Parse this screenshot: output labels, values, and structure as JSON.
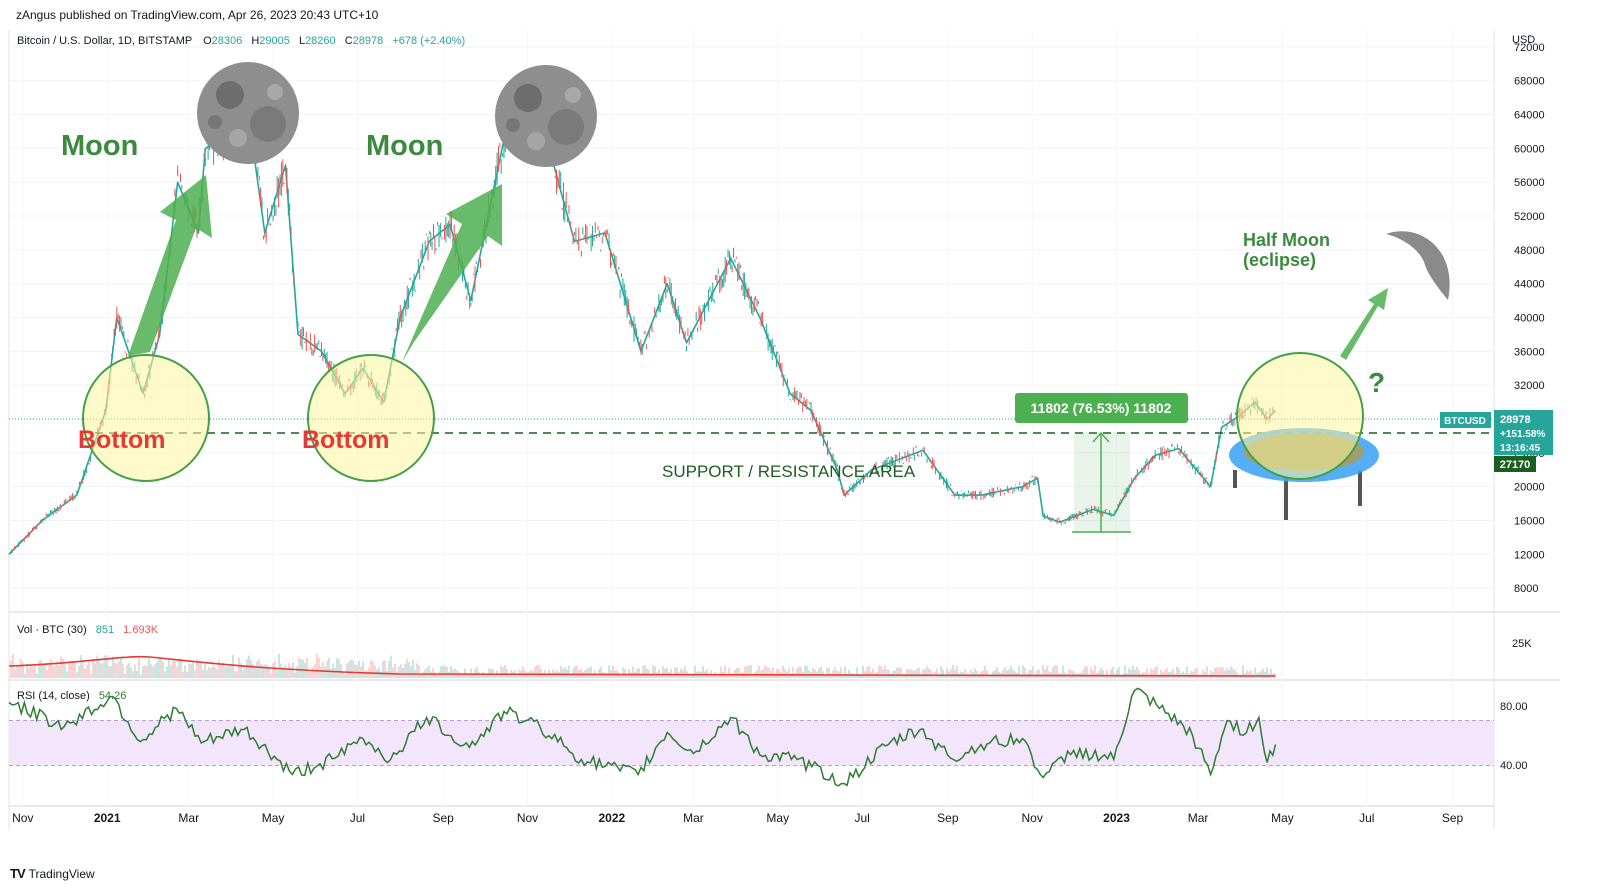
{
  "header": {
    "published_by": "zAngus published on TradingView.com, Apr 26, 2023 20:43 UTC+10"
  },
  "footer": {
    "brand": "TradingView",
    "logo_text": "TV"
  },
  "legend": {
    "symbol": "Bitcoin / U.S. Dollar, 1D, BITSTAMP",
    "open_label": "O",
    "open": "28306",
    "high_label": "H",
    "high": "29005",
    "low_label": "L",
    "low": "28260",
    "close_label": "C",
    "close": "28978",
    "change": "+678 (+2.40%)"
  },
  "price_axis": {
    "currency": "USD",
    "ticks": [
      "72000",
      "68000",
      "64000",
      "60000",
      "56000",
      "52000",
      "48000",
      "44000",
      "40000",
      "36000",
      "32000",
      "28000",
      "24000",
      "20000",
      "16000",
      "12000",
      "8000"
    ]
  },
  "volume_pane": {
    "label": "Vol · BTC (30)",
    "value": "851",
    "ma_value": "1.693K",
    "axis_tick": "25K"
  },
  "rsi_pane": {
    "label": "RSI (14, close)",
    "value": "54.26",
    "axis_ticks": [
      "80.00",
      "40.00"
    ],
    "band": [
      40,
      70
    ]
  },
  "time_axis": {
    "labels": [
      "Nov",
      "2021",
      "Mar",
      "May",
      "Jul",
      "Sep",
      "Nov",
      "2022",
      "Mar",
      "May",
      "Jul",
      "Sep",
      "Nov",
      "2023",
      "Mar",
      "May",
      "Jul",
      "Sep"
    ]
  },
  "price_tags": {
    "symbol_tag": "BTCUSD",
    "last_price": "28978",
    "change_pct": "+151.58%",
    "countdown": "13:16:45",
    "support_level": "27170"
  },
  "annotations": {
    "moon_1": "Moon",
    "moon_2": "Moon",
    "bottom_1": "Bottom",
    "bottom_2": "Bottom",
    "support_resistance": "SUPPORT / RESISTANCE AREA",
    "measure_box": "11802 (76.53%) 11802",
    "half_moon_line1": "Half Moon",
    "half_moon_line2": "(eclipse)",
    "question": "?"
  },
  "colors": {
    "up": "#26a69a",
    "down": "#ef5350",
    "rsi_line": "#2e7d32",
    "annotation_green": "#3b8a3e",
    "bottom_red": "#e53935",
    "measure_green": "#4caf50",
    "rsi_band": "#f3e5fb"
  },
  "chart_data": {
    "type": "line",
    "title": "Bitcoin / U.S. Dollar, 1D, BITSTAMP",
    "y_unit": "USD",
    "ylim": [
      6000,
      74000
    ],
    "support_level": 27170,
    "series": [
      {
        "name": "BTCUSD",
        "x": [
          "2020-10-22",
          "2020-11-15",
          "2020-12-10",
          "2020-12-31",
          "2021-01-08",
          "2021-01-27",
          "2021-02-08",
          "2021-02-21",
          "2021-03-08",
          "2021-03-13",
          "2021-04-14",
          "2021-04-25",
          "2021-05-10",
          "2021-05-19",
          "2021-06-05",
          "2021-06-22",
          "2021-07-05",
          "2021-07-20",
          "2021-08-01",
          "2021-08-22",
          "2021-09-06",
          "2021-09-21",
          "2021-10-06",
          "2021-10-20",
          "2021-11-10",
          "2021-11-20",
          "2021-12-05",
          "2021-12-27",
          "2022-01-22",
          "2022-02-10",
          "2022-02-24",
          "2022-03-28",
          "2022-04-18",
          "2022-05-10",
          "2022-05-25",
          "2022-06-13",
          "2022-06-18",
          "2022-07-08",
          "2022-08-14",
          "2022-09-06",
          "2022-09-25",
          "2022-10-25",
          "2022-11-05",
          "2022-11-09",
          "2022-11-21",
          "2022-12-15",
          "2022-12-30",
          "2023-01-14",
          "2023-01-29",
          "2023-02-15",
          "2023-03-10",
          "2023-03-18",
          "2023-04-01",
          "2023-04-11",
          "2023-04-20",
          "2023-04-26"
        ],
        "values": [
          12000,
          16000,
          19000,
          29000,
          40000,
          31000,
          38000,
          56000,
          50000,
          60000,
          63000,
          50000,
          58000,
          38000,
          36000,
          31000,
          34000,
          30000,
          40000,
          49000,
          51000,
          42000,
          54000,
          65000,
          67000,
          58000,
          49000,
          50000,
          36000,
          44000,
          37000,
          47000,
          40000,
          31000,
          29000,
          22000,
          19000,
          22000,
          24300,
          19000,
          19000,
          20000,
          21000,
          16500,
          15800,
          17300,
          16600,
          21000,
          23700,
          24500,
          20000,
          27000,
          28500,
          30000,
          28000,
          28978
        ]
      }
    ],
    "volume": {
      "label": "Vol · BTC (30)",
      "value": 851,
      "ma": "1.693K"
    },
    "rsi": {
      "label": "RSI (14, close)",
      "x": [
        "2020-10-22",
        "2020-12-01",
        "2021-01-05",
        "2021-01-25",
        "2021-02-20",
        "2021-03-10",
        "2021-04-10",
        "2021-05-15",
        "2021-06-15",
        "2021-07-05",
        "2021-07-25",
        "2021-08-20",
        "2021-09-20",
        "2021-10-15",
        "2021-11-10",
        "2021-12-10",
        "2022-01-20",
        "2022-02-10",
        "2022-03-01",
        "2022-03-28",
        "2022-04-20",
        "2022-05-15",
        "2022-06-18",
        "2022-07-20",
        "2022-08-12",
        "2022-09-05",
        "2022-09-25",
        "2022-10-25",
        "2022-11-09",
        "2022-12-01",
        "2022-12-30",
        "2023-01-14",
        "2023-02-01",
        "2023-02-25",
        "2023-03-10",
        "2023-03-22",
        "2023-04-05",
        "2023-04-14",
        "2023-04-20",
        "2023-04-26"
      ],
      "values": [
        82,
        66,
        86,
        56,
        78,
        55,
        64,
        34,
        45,
        58,
        44,
        72,
        52,
        76,
        66,
        44,
        34,
        62,
        48,
        72,
        46,
        44,
        28,
        54,
        64,
        44,
        54,
        58,
        32,
        50,
        44,
        90,
        78,
        60,
        34,
        70,
        62,
        72,
        42,
        54
      ]
    }
  }
}
